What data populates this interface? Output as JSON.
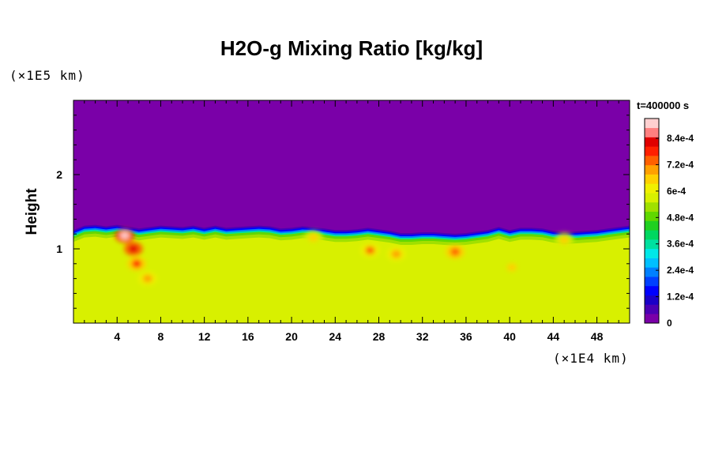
{
  "chart_data": {
    "type": "heatmap",
    "title": "H2O-g Mixing Ratio [kg/kg]",
    "ylabel": "Height",
    "xlabel": "",
    "x_unit_label": "(×1E4 km)",
    "y_unit_label": "(×1E5 km)",
    "time_label": "t=400000 s",
    "xlim": [
      0,
      51
    ],
    "ylim": [
      0,
      3
    ],
    "x_ticks": [
      4,
      8,
      12,
      16,
      20,
      24,
      28,
      32,
      36,
      40,
      44,
      48
    ],
    "x_tick_labels": [
      "4",
      "8",
      "12",
      "16",
      "20",
      "24",
      "28",
      "32",
      "36",
      "40",
      "44",
      "48"
    ],
    "y_ticks": [
      1,
      2
    ],
    "y_tick_labels": [
      "1",
      "2"
    ],
    "colorbar": {
      "range": [
        0,
        0.00093
      ],
      "ticks": [
        0,
        0.00012,
        0.00024,
        0.00036,
        0.00048,
        0.0006,
        0.00072,
        0.00084
      ],
      "tick_labels": [
        "0",
        "1.2e-4",
        "2.4e-4",
        "3.6e-4",
        "4.8e-4",
        "6e-4",
        "7.2e-4",
        "8.4e-4"
      ],
      "colors": [
        "#7a00a8",
        "#4b00b4",
        "#1a00c8",
        "#0000ff",
        "#0040ff",
        "#0080ff",
        "#00c0ff",
        "#00e8e8",
        "#00e0a0",
        "#00d860",
        "#20d020",
        "#60d800",
        "#a0e000",
        "#d8f000",
        "#f0f000",
        "#ffd000",
        "#ffa000",
        "#ff6000",
        "#ff2000",
        "#e00000",
        "#ff8080",
        "#ffd0d0"
      ]
    },
    "field": {
      "background_value": 0.00058,
      "upper_value": 0,
      "boundary_height": [
        1.2,
        1.26,
        1.27,
        1.25,
        1.27,
        1.25,
        1.22,
        1.24,
        1.26,
        1.25,
        1.24,
        1.26,
        1.23,
        1.26,
        1.23,
        1.24,
        1.25,
        1.26,
        1.25,
        1.22,
        1.23,
        1.25,
        1.24,
        1.22,
        1.2,
        1.2,
        1.21,
        1.23,
        1.21,
        1.19,
        1.16,
        1.16,
        1.17,
        1.17,
        1.16,
        1.15,
        1.16,
        1.18,
        1.2,
        1.24,
        1.2,
        1.23,
        1.23,
        1.22,
        1.19,
        1.17,
        1.18,
        1.19,
        1.2,
        1.22,
        1.24,
        1.26
      ],
      "features": [
        {
          "x": 4.7,
          "y": 1.18,
          "value": 0.00092
        },
        {
          "x": 5.5,
          "y": 1.0,
          "value": 0.00086
        },
        {
          "x": 5.8,
          "y": 0.8,
          "value": 0.00078
        },
        {
          "x": 6.8,
          "y": 0.6,
          "value": 0.00072
        },
        {
          "x": 27.2,
          "y": 0.98,
          "value": 0.00074
        },
        {
          "x": 29.6,
          "y": 0.93,
          "value": 0.00072
        },
        {
          "x": 35.0,
          "y": 0.96,
          "value": 0.00076
        },
        {
          "x": 40.2,
          "y": 0.75,
          "value": 0.00068
        },
        {
          "x": 22.0,
          "y": 1.15,
          "value": 0.00068
        },
        {
          "x": 45.0,
          "y": 1.12,
          "value": 0.00066
        }
      ]
    }
  }
}
